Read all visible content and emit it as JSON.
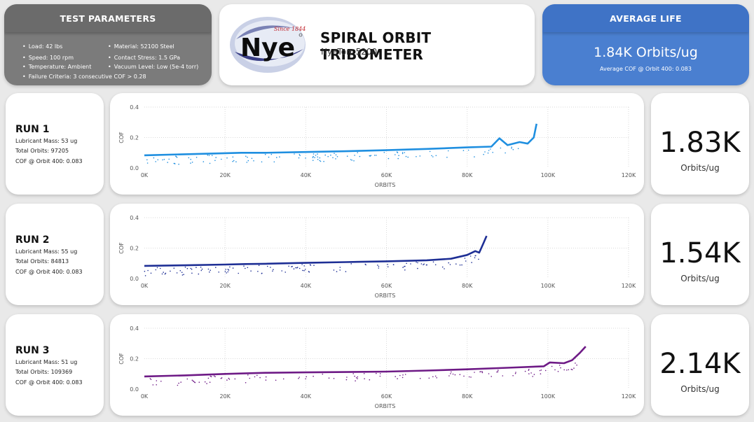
{
  "test_parameters": {
    "title": "TEST PARAMETERS",
    "items": [
      "Load: 42 lbs",
      "Material: 52100 Steel",
      "Speed: 100 rpm",
      "Contact Stress: 1.5 GPa",
      "Temperature: Ambient",
      "Vacuum Level: Low (5e-4 torr)",
      "Failure Criteria: 3 consecutive COF > 0.28"
    ]
  },
  "header": {
    "logo_text": "Nye",
    "logo_tagline": "Since 1844",
    "title": "SPIRAL ORBIT TRIBOMETER",
    "subtitle": "NyeTorr 5200"
  },
  "average_life": {
    "title": "AVERAGE LIFE",
    "value": "1.84K Orbits/ug",
    "sub": "Average COF @ Orbit 400: 0.083"
  },
  "runs": [
    {
      "title": "RUN 1",
      "mass": "Lubricant Mass: 53 ug",
      "orbits": "Total Orbits: 97205",
      "cof": "COF @ Orbit 400: 0.083",
      "rate": "1.83K",
      "unit": "Orbits/ug",
      "color": "#1f8fe0"
    },
    {
      "title": "RUN 2",
      "mass": "Lubricant Mass: 55 ug",
      "orbits": "Total Orbits: 84813",
      "cof": "COF @ Orbit 400: 0.083",
      "rate": "1.54K",
      "unit": "Orbits/ug",
      "color": "#1e2f95"
    },
    {
      "title": "RUN 3",
      "mass": "Lubricant Mass: 51 ug",
      "orbits": "Total Orbits: 109369",
      "cof": "COF @ Orbit 400: 0.083",
      "rate": "2.14K",
      "unit": "Orbits/ug",
      "color": "#6e1a86"
    }
  ],
  "chart_data": [
    {
      "type": "scatter",
      "xlabel": "ORBITS",
      "ylabel": "COF",
      "xlim": [
        0,
        120000
      ],
      "ylim": [
        0,
        0.4
      ],
      "xticks": [
        "0K",
        "20K",
        "40K",
        "60K",
        "80K",
        "100K",
        "120K"
      ],
      "yticks": [
        "0.0",
        "0.2",
        "0.4"
      ],
      "grid": true,
      "series": [
        {
          "points": [
            [
              0,
              0.083
            ],
            [
              10000,
              0.09
            ],
            [
              20000,
              0.097
            ],
            [
              24000,
              0.1
            ],
            [
              30000,
              0.1
            ],
            [
              40000,
              0.105
            ],
            [
              50000,
              0.11
            ],
            [
              60000,
              0.117
            ],
            [
              70000,
              0.125
            ],
            [
              80000,
              0.135
            ],
            [
              86000,
              0.14
            ],
            [
              88000,
              0.195
            ],
            [
              90000,
              0.15
            ],
            [
              93000,
              0.17
            ],
            [
              95000,
              0.16
            ],
            [
              96500,
              0.2
            ],
            [
              97205,
              0.29
            ]
          ]
        }
      ]
    },
    {
      "type": "scatter",
      "xlabel": "ORBITS",
      "ylabel": "COF",
      "xlim": [
        0,
        120000
      ],
      "ylim": [
        0,
        0.4
      ],
      "xticks": [
        "0K",
        "20K",
        "40K",
        "60K",
        "80K",
        "100K",
        "120K"
      ],
      "yticks": [
        "0.0",
        "0.2",
        "0.4"
      ],
      "grid": true,
      "series": [
        {
          "points": [
            [
              0,
              0.083
            ],
            [
              10000,
              0.087
            ],
            [
              20000,
              0.092
            ],
            [
              25000,
              0.095
            ],
            [
              30000,
              0.097
            ],
            [
              40000,
              0.103
            ],
            [
              50000,
              0.108
            ],
            [
              60000,
              0.113
            ],
            [
              70000,
              0.12
            ],
            [
              76000,
              0.13
            ],
            [
              80000,
              0.155
            ],
            [
              82000,
              0.18
            ],
            [
              83000,
              0.17
            ],
            [
              84000,
              0.23
            ],
            [
              84813,
              0.28
            ]
          ]
        }
      ]
    },
    {
      "type": "scatter",
      "xlabel": "ORBITS",
      "ylabel": "COF",
      "xlim": [
        0,
        120000
      ],
      "ylim": [
        0,
        0.4
      ],
      "xticks": [
        "0K",
        "20K",
        "40K",
        "60K",
        "80K",
        "100K",
        "120K"
      ],
      "yticks": [
        "0.0",
        "0.2",
        "0.4"
      ],
      "grid": true,
      "series": [
        {
          "points": [
            [
              0,
              0.083
            ],
            [
              10000,
              0.09
            ],
            [
              20000,
              0.1
            ],
            [
              30000,
              0.107
            ],
            [
              40000,
              0.11
            ],
            [
              50000,
              0.112
            ],
            [
              60000,
              0.115
            ],
            [
              70000,
              0.122
            ],
            [
              80000,
              0.13
            ],
            [
              90000,
              0.14
            ],
            [
              99000,
              0.15
            ],
            [
              100500,
              0.175
            ],
            [
              104000,
              0.17
            ],
            [
              106000,
              0.19
            ],
            [
              108000,
              0.24
            ],
            [
              109369,
              0.28
            ]
          ]
        }
      ]
    }
  ]
}
